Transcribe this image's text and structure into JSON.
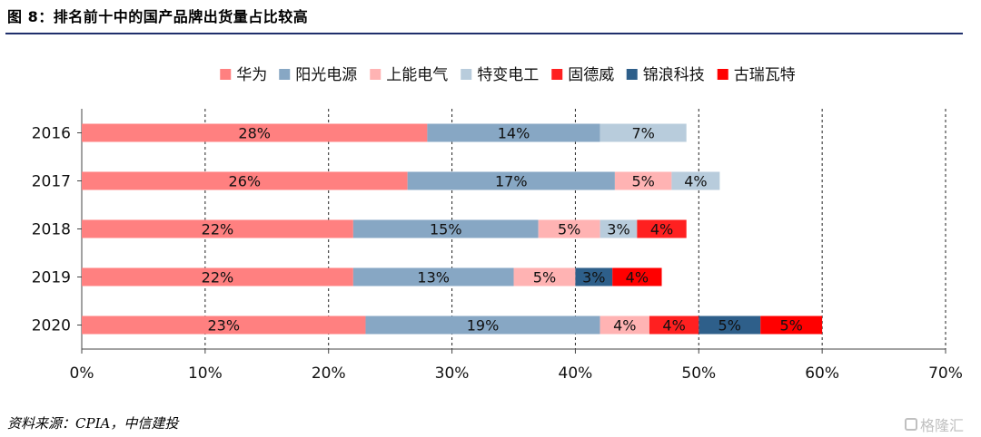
{
  "figure_title": "图 8：排名前十中的国产品牌出货量占比较高",
  "source": "资料来源：CPIA，中信建投",
  "watermark": "格隆汇",
  "chart_data": {
    "type": "bar",
    "orientation": "horizontal",
    "stacked": true,
    "categories": [
      "2016",
      "2017",
      "2018",
      "2019",
      "2020"
    ],
    "series": [
      {
        "name": "华为",
        "color": "#ff8080",
        "values": [
          28,
          26.4,
          22,
          22,
          23
        ],
        "labels": [
          "28%",
          "26%",
          "22%",
          "22%",
          "23%"
        ]
      },
      {
        "name": "阳光电源",
        "color": "#87a7c4",
        "values": [
          14,
          16.8,
          15,
          13,
          19
        ],
        "labels": [
          "14%",
          "17%",
          "15%",
          "13%",
          "19%"
        ]
      },
      {
        "name": "上能电气",
        "color": "#ffb3b3",
        "values": [
          0,
          4.6,
          5,
          5,
          4
        ],
        "labels": [
          "",
          "5%",
          "5%",
          "5%",
          "4%"
        ]
      },
      {
        "name": "特变电工",
        "color": "#b8ccdc",
        "values": [
          7,
          3.9,
          3,
          0,
          0
        ],
        "labels": [
          "7%",
          "4%",
          "3%",
          "",
          ""
        ]
      },
      {
        "name": "固德威",
        "color": "#ff2020",
        "values": [
          0,
          0,
          4,
          0,
          4
        ],
        "labels": [
          "",
          "",
          "4%",
          "",
          "4%"
        ]
      },
      {
        "name": "锦浪科技",
        "color": "#2e5f8a",
        "values": [
          0,
          0,
          0,
          3,
          5
        ],
        "labels": [
          "",
          "",
          "",
          "3%",
          "5%"
        ]
      },
      {
        "name": "古瑞瓦特",
        "color": "#ff0000",
        "values": [
          0,
          0,
          0,
          4,
          5
        ],
        "labels": [
          "",
          "",
          "",
          "4%",
          "5%"
        ]
      }
    ],
    "xlim": [
      0,
      70
    ],
    "x_ticks": [
      "0%",
      "10%",
      "20%",
      "30%",
      "40%",
      "50%",
      "60%",
      "70%"
    ],
    "grid": "vertical-dashed",
    "legend_position": "top"
  }
}
